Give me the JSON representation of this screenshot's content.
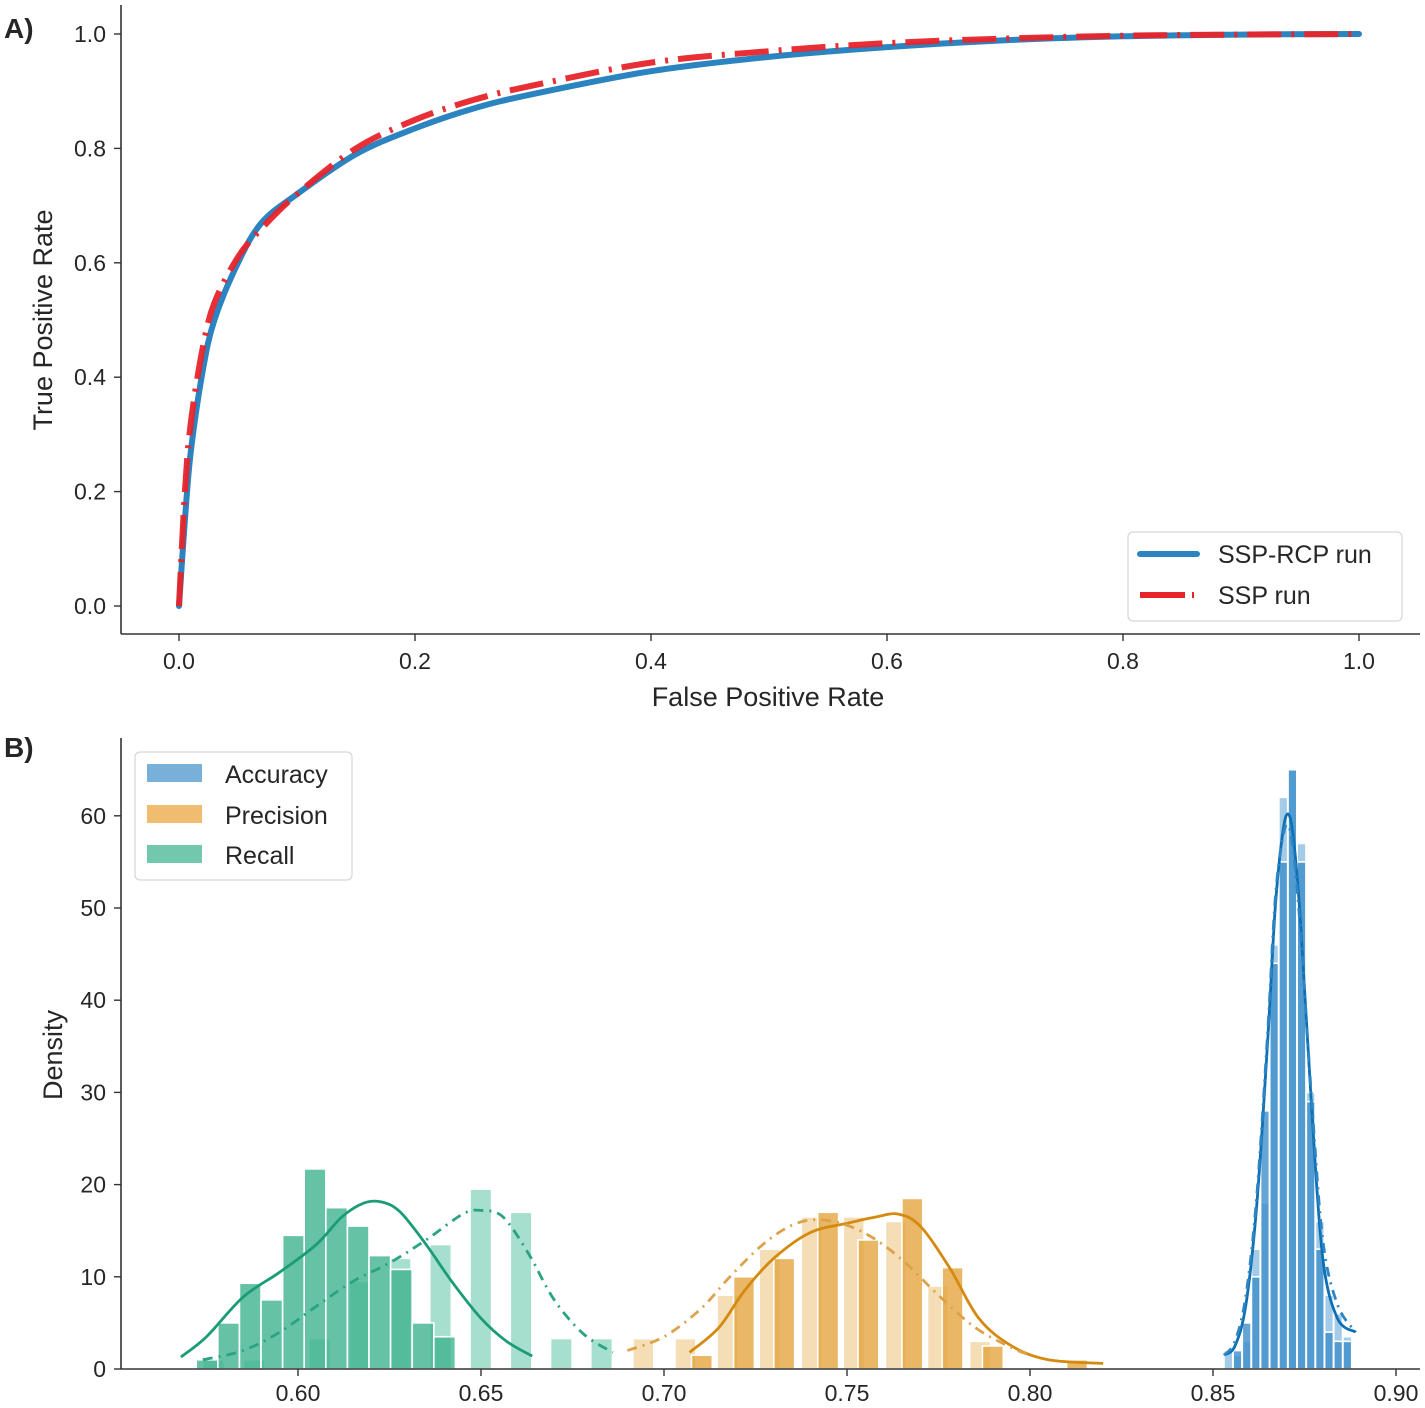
{
  "chart_data": [
    {
      "panel": "A)",
      "type": "line",
      "title": "",
      "xlabel": "False Positive Rate",
      "ylabel": "True Positive Rate",
      "xlim": [
        -0.05,
        1.05
      ],
      "ylim": [
        -0.05,
        1.05
      ],
      "xticks": [
        "0.0",
        "0.2",
        "0.4",
        "0.6",
        "0.8",
        "1.0"
      ],
      "yticks": [
        "0.0",
        "0.2",
        "0.4",
        "0.6",
        "0.8",
        "1.0"
      ],
      "grid": false,
      "legend_position": "bottom-right",
      "series": [
        {
          "name": "SSP-RCP run",
          "color": "#2b83c0",
          "style": "solid",
          "x": [
            0.0,
            0.005,
            0.01,
            0.02,
            0.03,
            0.05,
            0.07,
            0.1,
            0.15,
            0.2,
            0.25,
            0.3,
            0.4,
            0.5,
            0.6,
            0.7,
            0.8,
            0.9,
            1.0
          ],
          "y": [
            0.0,
            0.15,
            0.27,
            0.41,
            0.5,
            0.6,
            0.67,
            0.72,
            0.79,
            0.835,
            0.87,
            0.895,
            0.935,
            0.96,
            0.977,
            0.989,
            0.996,
            0.999,
            1.0
          ]
        },
        {
          "name": "SSP run",
          "color": "#e8242b",
          "style": "dashdot",
          "x": [
            0.0,
            0.005,
            0.01,
            0.02,
            0.03,
            0.05,
            0.07,
            0.1,
            0.15,
            0.2,
            0.25,
            0.3,
            0.4,
            0.5,
            0.6,
            0.7,
            0.8,
            0.9,
            1.0
          ],
          "y": [
            0.0,
            0.2,
            0.32,
            0.45,
            0.53,
            0.61,
            0.66,
            0.72,
            0.8,
            0.85,
            0.885,
            0.91,
            0.95,
            0.97,
            0.984,
            0.992,
            0.997,
            0.999,
            1.0
          ]
        }
      ]
    },
    {
      "panel": "B)",
      "type": "bar",
      "subtype": "histogram-kde",
      "title": "",
      "xlabel": "",
      "ylabel": "Density",
      "xlim": [
        0.5635,
        0.9065
      ],
      "ylim": [
        0,
        65
      ],
      "xticks": [
        "0.60",
        "0.65",
        "0.70",
        "0.75",
        "0.80",
        "0.85",
        "0.90"
      ],
      "yticks": [
        "0",
        "10",
        "20",
        "30",
        "40",
        "50",
        "60"
      ],
      "grid": false,
      "legend_position": "top-left",
      "legend": [
        {
          "label": "Accuracy",
          "color": "#77b0d8"
        },
        {
          "label": "Precision",
          "color": "#f0bd70"
        },
        {
          "label": "Recall",
          "color": "#72c8ad"
        }
      ],
      "series": [
        {
          "name": "Recall (solid KDE)",
          "metric": "Recall",
          "kde_style": "solid",
          "color": "#1a9c76",
          "fill": "#3fb38f",
          "bin_width": 0.0059,
          "bin_starts": [
            0.5722,
            0.5781,
            0.584,
            0.5899,
            0.5958,
            0.6017,
            0.6076,
            0.6135,
            0.6194,
            0.6253,
            0.6312,
            0.6371,
            0.643,
            0.6489
          ],
          "values": [
            1.0,
            5.0,
            9.3,
            7.5,
            14.5,
            21.7,
            17.5,
            15.5,
            12.3,
            10.8,
            5.0,
            3.5,
            0.0,
            0.0
          ],
          "kde_x": [
            0.568,
            0.575,
            0.585,
            0.595,
            0.605,
            0.612,
            0.618,
            0.623,
            0.628,
            0.635,
            0.642,
            0.65,
            0.657,
            0.664
          ],
          "kde_y": [
            1.3,
            3.5,
            7.8,
            10.5,
            13.5,
            16.5,
            18.0,
            18.1,
            17.0,
            13.5,
            9.5,
            5.5,
            3.0,
            1.4
          ]
        },
        {
          "name": "Recall (dash-dot KDE)",
          "metric": "Recall",
          "kde_style": "dashdot",
          "color": "#2aa383",
          "fill": "#8ad4be",
          "bin_width": 0.0059,
          "bin_starts": [
            0.574,
            0.585,
            0.603,
            0.614,
            0.625,
            0.636,
            0.647,
            0.658,
            0.669,
            0.68
          ],
          "values": [
            1.0,
            1.0,
            3.3,
            9.5,
            12.0,
            13.5,
            19.5,
            17.0,
            3.3,
            3.3
          ],
          "kde_x": [
            0.574,
            0.585,
            0.595,
            0.605,
            0.615,
            0.625,
            0.635,
            0.645,
            0.65,
            0.656,
            0.663,
            0.67,
            0.678,
            0.686
          ],
          "kde_y": [
            1.0,
            2.0,
            4.0,
            6.8,
            9.5,
            11.5,
            14.0,
            16.8,
            17.2,
            16.5,
            12.5,
            7.5,
            3.8,
            1.8
          ]
        },
        {
          "name": "Precision (solid KDE)",
          "metric": "Precision",
          "kde_style": "solid",
          "color": "#d48a0e",
          "fill": "#e4a53e",
          "bin_width": 0.0057,
          "bin_starts": [
            0.7075,
            0.719,
            0.73,
            0.742,
            0.753,
            0.765,
            0.776,
            0.787,
            0.81
          ],
          "values": [
            1.5,
            10.0,
            12.0,
            17.0,
            14.0,
            18.5,
            11.0,
            2.5,
            1.0
          ],
          "kde_x": [
            0.707,
            0.715,
            0.722,
            0.73,
            0.74,
            0.75,
            0.758,
            0.764,
            0.77,
            0.778,
            0.786,
            0.795,
            0.805,
            0.82
          ],
          "kde_y": [
            1.8,
            4.5,
            8.5,
            12.0,
            14.8,
            15.8,
            16.5,
            16.8,
            15.5,
            11.0,
            5.5,
            2.5,
            1.0,
            0.6
          ]
        },
        {
          "name": "Precision (dash-dot KDE)",
          "metric": "Precision",
          "kde_style": "dashdot",
          "color": "#dba24a",
          "fill": "#f2d29e",
          "bin_width": 0.0057,
          "bin_starts": [
            0.6915,
            0.703,
            0.7145,
            0.726,
            0.7375,
            0.749,
            0.7605,
            0.772,
            0.7835
          ],
          "values": [
            3.3,
            3.3,
            8.0,
            13.0,
            16.5,
            16.5,
            16.0,
            9.0,
            3.0
          ],
          "kde_x": [
            0.69,
            0.7,
            0.71,
            0.718,
            0.727,
            0.735,
            0.742,
            0.75,
            0.758,
            0.766,
            0.775,
            0.785,
            0.795,
            0.8
          ],
          "kde_y": [
            2.0,
            3.5,
            6.5,
            10.0,
            13.5,
            15.6,
            16.2,
            15.6,
            14.0,
            11.5,
            8.0,
            4.5,
            2.3,
            1.5
          ]
        },
        {
          "name": "Accuracy (solid KDE)",
          "metric": "Accuracy",
          "kde_style": "solid",
          "color": "#0f6fb3",
          "fill": "#3d8fcb",
          "bin_width": 0.0024,
          "bin_starts": [
            0.8555,
            0.858,
            0.8605,
            0.863,
            0.8655,
            0.868,
            0.8705,
            0.873,
            0.8755,
            0.878,
            0.8805,
            0.883,
            0.8855
          ],
          "values": [
            2.0,
            5.0,
            10.0,
            28.0,
            44.0,
            55.0,
            65.0,
            55.0,
            29.0,
            13.0,
            4.0,
            3.0,
            3.0
          ],
          "kde_x": [
            0.853,
            0.856,
            0.859,
            0.862,
            0.865,
            0.867,
            0.869,
            0.8705,
            0.872,
            0.874,
            0.877,
            0.88,
            0.884,
            0.889
          ],
          "kde_y": [
            1.5,
            2.5,
            7.0,
            18.0,
            36.0,
            50.0,
            58.0,
            60.2,
            57.5,
            48.0,
            28.0,
            12.0,
            5.5,
            4.0
          ]
        },
        {
          "name": "Accuracy (dash-dot KDE)",
          "metric": "Accuracy",
          "kde_style": "dashdot",
          "color": "#2c85c5",
          "fill": "#85b9e0",
          "bin_width": 0.0024,
          "bin_starts": [
            0.853,
            0.8555,
            0.858,
            0.8605,
            0.863,
            0.8655,
            0.868,
            0.8705,
            0.873,
            0.8755,
            0.878,
            0.8805,
            0.883,
            0.8855
          ],
          "values": [
            2.0,
            1.5,
            3.0,
            13.0,
            18.0,
            46.0,
            62.0,
            65.0,
            57.0,
            30.0,
            16.0,
            8.0,
            6.0,
            3.5
          ],
          "kde_x": [
            0.853,
            0.856,
            0.859,
            0.862,
            0.865,
            0.867,
            0.869,
            0.8705,
            0.872,
            0.874,
            0.877,
            0.88,
            0.884,
            0.889
          ],
          "kde_y": [
            1.5,
            3.0,
            8.0,
            19.0,
            37.0,
            51.0,
            57.5,
            59.0,
            56.0,
            47.0,
            29.0,
            14.0,
            7.0,
            4.0
          ]
        }
      ]
    }
  ]
}
